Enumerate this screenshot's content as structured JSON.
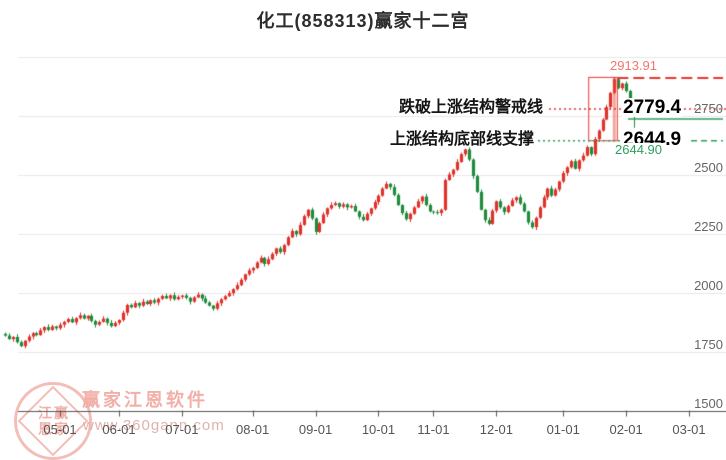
{
  "title": "化工(858313)赢家十二宫",
  "annotations": {
    "peak_label": "2913.91",
    "warning_line_text": "跌破上涨结构警戒线",
    "warning_price_label": "2779.4",
    "support_line_text": "上涨结构底部线支撑",
    "support_price_label": "2644.9",
    "support_price_small_label": "2644.90"
  },
  "watermark": {
    "brand": "赢家江恩软件",
    "website": "www.360gann.com",
    "seal_characters": [
      "江",
      "赢",
      "恩",
      "家"
    ]
  },
  "chart_data": {
    "type": "candlestick",
    "title": "化工(858313)赢家十二宫",
    "y_axis": {
      "tick_labels": [
        "2750",
        "2500",
        "2250",
        "2000",
        "1750",
        "1500"
      ],
      "tick_values": [
        2750,
        2500,
        2250,
        2000,
        1750,
        1500
      ],
      "unlabeled_gridline": 3000,
      "side": "right"
    },
    "x_axis": {
      "tick_labels": [
        "05-01",
        "06-01",
        "07-01",
        "08-01",
        "09-01",
        "10-01",
        "11-01",
        "12-01",
        "01-01",
        "02-01",
        "03-01"
      ],
      "tick_candle_index": [
        14,
        29,
        45,
        63,
        79,
        95,
        109,
        125,
        142,
        158,
        174
      ]
    },
    "levels": {
      "peak_high": 2913.91,
      "warning_line": 2779.4,
      "support_line": 2644.9,
      "last_close": 2779.4
    },
    "structure_box": {
      "start_index": 149,
      "end_index": 155,
      "top": 2913.91,
      "bottom": 2644.9
    },
    "first_open": 1825,
    "closes": [
      1818,
      1803,
      1812,
      1790,
      1773,
      1796,
      1814,
      1828,
      1820,
      1840,
      1854,
      1842,
      1857,
      1849,
      1864,
      1876,
      1888,
      1874,
      1892,
      1904,
      1890,
      1902,
      1880,
      1864,
      1876,
      1890,
      1872,
      1858,
      1872,
      1884,
      1915,
      1948,
      1938,
      1956,
      1945,
      1962,
      1952,
      1968,
      1958,
      1974,
      1986,
      1976,
      1989,
      1972,
      1982,
      1988,
      1978,
      1962,
      1980,
      1992,
      1975,
      1958,
      1945,
      1932,
      1955,
      1972,
      1985,
      1998,
      2015,
      2032,
      2055,
      2078,
      2095,
      2105,
      2128,
      2148,
      2122,
      2142,
      2165,
      2188,
      2172,
      2202,
      2235,
      2262,
      2248,
      2288,
      2325,
      2352,
      2315,
      2258,
      2295,
      2332,
      2358,
      2372,
      2380,
      2365,
      2375,
      2362,
      2368,
      2345,
      2322,
      2308,
      2335,
      2358,
      2385,
      2412,
      2442,
      2462,
      2448,
      2415,
      2372,
      2338,
      2312,
      2335,
      2362,
      2388,
      2408,
      2372,
      2345,
      2342,
      2338,
      2352,
      2478,
      2502,
      2522,
      2555,
      2588,
      2608,
      2565,
      2495,
      2428,
      2352,
      2308,
      2292,
      2348,
      2388,
      2362,
      2342,
      2368,
      2392,
      2405,
      2378,
      2345,
      2298,
      2278,
      2318,
      2362,
      2405,
      2442,
      2412,
      2438,
      2472,
      2508,
      2532,
      2558,
      2526,
      2562,
      2582,
      2618,
      2588,
      2652,
      2688,
      2735,
      2788,
      2848,
      2906,
      2868,
      2888,
      2856,
      2812,
      2779
    ],
    "special_wicks": {
      "155": {
        "high": 2913.91
      },
      "160": {
        "low": 2700
      }
    },
    "colors": {
      "up": "#e0312b",
      "down": "#1f8b3c",
      "grid": "#e9e9e9",
      "axis": "#555555",
      "peak_line": "#e8382e",
      "warning_dotted": "#e0392f",
      "support_green": "#2e9e5b",
      "box_fill_line": "rgba(231,76,60,0.5)"
    }
  }
}
